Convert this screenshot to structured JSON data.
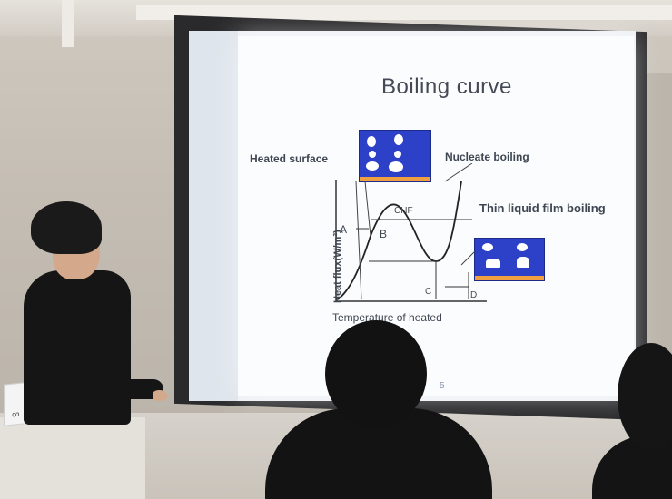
{
  "slide": {
    "title": "Boiling curve",
    "labels": {
      "heated_surface": "Heated surface",
      "nucleate_boiling": "Nucleate boiling",
      "thin_film": "Thin liquid film boiling",
      "y_axis": "Heat flux(W/m²)",
      "x_axis": "Temperature of heated",
      "chf": "CHF",
      "point_a": "A",
      "point_b": "B",
      "point_c": "C",
      "point_d": "D"
    },
    "page_number": "5"
  },
  "laptop": {
    "logo": "∞"
  },
  "colors": {
    "bubble_box": "#2c40c8",
    "heated_strip": "#f0a040",
    "slide_bg": "#fbfcfe"
  }
}
